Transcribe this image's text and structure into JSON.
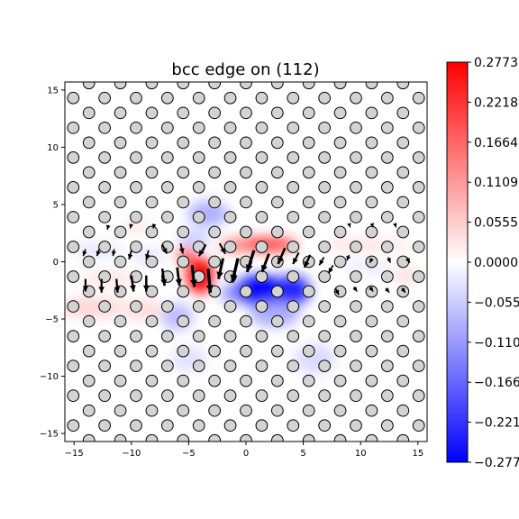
{
  "chart_data": {
    "type": "heatmap",
    "title": "bcc edge on (112)",
    "xlabel": "",
    "ylabel": "",
    "xlim": [
      -15.8,
      15.8
    ],
    "ylim": [
      -15.7,
      15.7
    ],
    "x_ticks": [
      -15,
      -10,
      -5,
      0,
      5,
      10,
      15
    ],
    "y_ticks": [
      -15,
      -10,
      -5,
      0,
      5,
      10,
      15
    ],
    "x_tick_labels": [
      "−15",
      "−10",
      "−5",
      "0",
      "5",
      "10",
      "15"
    ],
    "y_tick_labels": [
      "−15",
      "−10",
      "−5",
      "0",
      "5",
      "10",
      "15"
    ],
    "colormap": "bwr",
    "colorbar": {
      "min": -0.2773,
      "max": 0.2773,
      "tick_values": [
        0.2773,
        0.2218,
        0.1664,
        0.1109,
        0.0555,
        0.0,
        -0.0555,
        -0.1109,
        -0.1664,
        -0.2218,
        -0.2773
      ],
      "tick_labels": [
        "0.2773",
        "0.2218",
        "0.1664",
        "0.1109",
        "0.0555",
        "0.0000",
        "−0.0555",
        "−0.1109",
        "−0.1664",
        "−0.2218",
        "−0.2773"
      ]
    },
    "field_blobs": [
      {
        "x": -4.0,
        "y": -1.2,
        "sx": 1.2,
        "sy": 1.6,
        "value": 0.2773
      },
      {
        "x": -5.2,
        "y": 0.5,
        "sx": 0.8,
        "sy": 0.8,
        "value": 0.2
      },
      {
        "x": -3.3,
        "y": 4.2,
        "sx": 1.8,
        "sy": 1.1,
        "value": -0.12
      },
      {
        "x": -4.5,
        "y": 2.0,
        "sx": 1.4,
        "sy": 0.8,
        "value": -0.08
      },
      {
        "x": 1.5,
        "y": 1.5,
        "sx": 3.0,
        "sy": 0.6,
        "value": 0.24
      },
      {
        "x": -1.0,
        "y": 1.4,
        "sx": 1.4,
        "sy": 0.6,
        "value": 0.14
      },
      {
        "x": 1.2,
        "y": -2.5,
        "sx": 2.3,
        "sy": 1.3,
        "value": -0.2773
      },
      {
        "x": 4.0,
        "y": -2.5,
        "sx": 1.6,
        "sy": 1.3,
        "value": -0.25
      },
      {
        "x": 2.5,
        "y": -4.5,
        "sx": 2.2,
        "sy": 1.2,
        "value": -0.12
      },
      {
        "x": -1.2,
        "y": -2.8,
        "sx": 1.0,
        "sy": 0.9,
        "value": -0.14
      },
      {
        "x": -6.0,
        "y": -4.8,
        "sx": 1.4,
        "sy": 1.2,
        "value": -0.1
      },
      {
        "x": -12.0,
        "y": -1.5,
        "sx": 2.5,
        "sy": 0.6,
        "value": 0.05
      },
      {
        "x": -13.5,
        "y": -4.0,
        "sx": 2.8,
        "sy": 0.9,
        "value": 0.07
      },
      {
        "x": -9.0,
        "y": -4.2,
        "sx": 1.8,
        "sy": 0.9,
        "value": 0.06
      },
      {
        "x": -13.0,
        "y": 1.0,
        "sx": 2.2,
        "sy": 0.6,
        "value": -0.05
      },
      {
        "x": -8.5,
        "y": 0.5,
        "sx": 1.6,
        "sy": 0.6,
        "value": -0.05
      },
      {
        "x": -5.0,
        "y": -8.5,
        "sx": 1.6,
        "sy": 1.2,
        "value": -0.05
      },
      {
        "x": 6.0,
        "y": -8.5,
        "sx": 1.8,
        "sy": 1.4,
        "value": -0.06
      },
      {
        "x": 9.5,
        "y": 1.5,
        "sx": 2.5,
        "sy": 0.6,
        "value": 0.05
      },
      {
        "x": 12.5,
        "y": 1.4,
        "sx": 2.2,
        "sy": 0.5,
        "value": 0.04
      },
      {
        "x": 10.5,
        "y": -0.5,
        "sx": 2.2,
        "sy": 0.5,
        "value": -0.04
      },
      {
        "x": 14.0,
        "y": -1.2,
        "sx": 1.5,
        "sy": 0.8,
        "value": 0.05
      },
      {
        "x": -9.5,
        "y": 3.0,
        "sx": 1.4,
        "sy": 0.6,
        "value": 0.04
      }
    ],
    "atoms": {
      "lattice_a": [
        2.74,
        0
      ],
      "lattice_b": [
        1.37,
        1.3
      ],
      "origin": [
        0,
        0
      ],
      "radius": 0.5
    },
    "displacement_arrows": [
      {
        "x": -14.0,
        "y": 1.1,
        "dx": -0.2,
        "dy": 0.6
      },
      {
        "x": -12.8,
        "y": 1.1,
        "dx": -0.2,
        "dy": 0.6
      },
      {
        "x": -11.5,
        "y": 1.1,
        "dx": -0.1,
        "dy": 0.6
      },
      {
        "x": -10.0,
        "y": 1.0,
        "dx": -0.2,
        "dy": 0.8
      },
      {
        "x": -8.5,
        "y": 1.0,
        "dx": -0.2,
        "dy": 0.8
      },
      {
        "x": -7.3,
        "y": 1.5,
        "dx": 0.4,
        "dy": 0.8
      },
      {
        "x": -5.7,
        "y": 1.6,
        "dx": 0.2,
        "dy": 0.9
      },
      {
        "x": -3.5,
        "y": 1.5,
        "dx": -0.6,
        "dy": 1.0
      },
      {
        "x": -2.3,
        "y": 1.6,
        "dx": 0.5,
        "dy": 0.9
      },
      {
        "x": -14.0,
        "y": -1.5,
        "dx": 0.0,
        "dy": 1.1
      },
      {
        "x": -12.6,
        "y": -1.5,
        "dx": 0.0,
        "dy": 1.2
      },
      {
        "x": -11.3,
        "y": -1.5,
        "dx": 0.1,
        "dy": 1.2
      },
      {
        "x": -10.0,
        "y": -1.2,
        "dx": 0.2,
        "dy": 1.4
      },
      {
        "x": -8.7,
        "y": -1.2,
        "dx": 0.0,
        "dy": 1.4
      },
      {
        "x": -7.3,
        "y": -0.6,
        "dx": 0.2,
        "dy": 1.5
      },
      {
        "x": -6.0,
        "y": -0.5,
        "dx": 0.2,
        "dy": 1.6
      },
      {
        "x": -4.7,
        "y": -0.3,
        "dx": 0.2,
        "dy": 1.9
      },
      {
        "x": -3.3,
        "y": -0.6,
        "dx": 0.2,
        "dy": 2.1
      },
      {
        "x": -2.0,
        "y": 0.3,
        "dx": -0.4,
        "dy": 1.8
      },
      {
        "x": -0.7,
        "y": 0.3,
        "dx": -0.5,
        "dy": 2.1
      },
      {
        "x": 0.7,
        "y": 1.0,
        "dx": -0.6,
        "dy": 1.9
      },
      {
        "x": 2.0,
        "y": 0.7,
        "dx": -0.6,
        "dy": 1.6
      },
      {
        "x": 3.4,
        "y": 1.2,
        "dx": -0.6,
        "dy": 1.4
      },
      {
        "x": 4.6,
        "y": 0.8,
        "dx": -0.5,
        "dy": 1.0
      },
      {
        "x": 5.6,
        "y": 0.6,
        "dx": -0.5,
        "dy": 1.1
      },
      {
        "x": 6.8,
        "y": 0.4,
        "dx": -0.4,
        "dy": 0.7
      },
      {
        "x": 7.6,
        "y": -0.3,
        "dx": -0.4,
        "dy": 0.7
      },
      {
        "x": 7.8,
        "y": -2.3,
        "dx": 0.3,
        "dy": 0.6
      },
      {
        "x": 9.0,
        "y": 0.6,
        "dx": -0.2,
        "dy": 0.5
      },
      {
        "x": 11.0,
        "y": 0.3,
        "dx": -0.2,
        "dy": 0.4
      },
      {
        "x": 12.4,
        "y": 0.4,
        "dx": 0.2,
        "dy": 0.5
      },
      {
        "x": 14.0,
        "y": 0.4,
        "dx": 0.3,
        "dy": 0.5
      },
      {
        "x": 9.4,
        "y": -2.2,
        "dx": 0.3,
        "dy": 0.4
      },
      {
        "x": 10.8,
        "y": -2.2,
        "dx": 0.3,
        "dy": 0.4
      },
      {
        "x": 12.2,
        "y": -2.3,
        "dx": 0.3,
        "dy": 0.4
      },
      {
        "x": 13.6,
        "y": -2.3,
        "dx": 0.3,
        "dy": 0.4
      },
      {
        "x": -12.0,
        "y": 3.2,
        "dx": -0.1,
        "dy": 0.4
      },
      {
        "x": -10.0,
        "y": 3.3,
        "dx": -0.1,
        "dy": 0.4
      },
      {
        "x": -8.0,
        "y": 3.3,
        "dx": -0.1,
        "dy": 0.4
      },
      {
        "x": 9.0,
        "y": 3.3,
        "dx": 0.1,
        "dy": 0.3
      },
      {
        "x": 11.0,
        "y": 3.3,
        "dx": 0.1,
        "dy": 0.3
      },
      {
        "x": 13.0,
        "y": 3.3,
        "dx": 0.1,
        "dy": 0.3
      }
    ],
    "grid": false,
    "legend": "none"
  }
}
